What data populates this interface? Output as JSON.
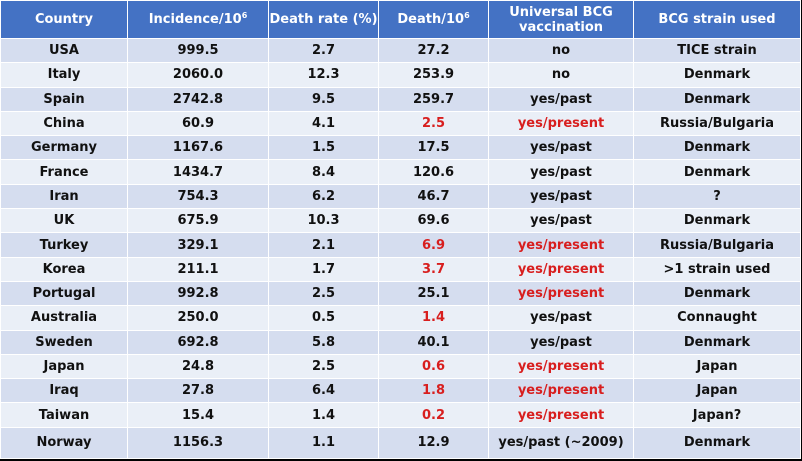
{
  "headers": {
    "country": "Country",
    "incidence": "Incidence/10",
    "incidence_sup": "6",
    "death_rate": "Death rate (%)",
    "death": "Death/10",
    "death_sup": "6",
    "vaccination": "Universal BCG vaccination",
    "strain": "BCG strain used"
  },
  "colors": {
    "header_bg": "#4472C4",
    "row_odd": "#D5DDEF",
    "row_even": "#EAEFF7",
    "highlight": "#D81E1E"
  },
  "rows": [
    {
      "country": "USA",
      "incidence": "999.5",
      "death_rate": "2.7",
      "death": "27.2",
      "vaccination": "no",
      "strain": "TICE strain",
      "highlight": false
    },
    {
      "country": "Italy",
      "incidence": "2060.0",
      "death_rate": "12.3",
      "death": "253.9",
      "vaccination": "no",
      "strain": "Denmark",
      "highlight": false
    },
    {
      "country": "Spain",
      "incidence": "2742.8",
      "death_rate": "9.5",
      "death": "259.7",
      "vaccination": "yes/past",
      "strain": "Denmark",
      "highlight": false
    },
    {
      "country": "China",
      "incidence": "60.9",
      "death_rate": "4.1",
      "death": "2.5",
      "vaccination": "yes/present",
      "strain": "Russia/Bulgaria",
      "highlight": true
    },
    {
      "country": "Germany",
      "incidence": "1167.6",
      "death_rate": "1.5",
      "death": "17.5",
      "vaccination": "yes/past",
      "strain": "Denmark",
      "highlight": false
    },
    {
      "country": "France",
      "incidence": "1434.7",
      "death_rate": "8.4",
      "death": "120.6",
      "vaccination": "yes/past",
      "strain": "Denmark",
      "highlight": false
    },
    {
      "country": "Iran",
      "incidence": "754.3",
      "death_rate": "6.2",
      "death": "46.7",
      "vaccination": "yes/past",
      "strain": "?",
      "highlight": false
    },
    {
      "country": "UK",
      "incidence": "675.9",
      "death_rate": "10.3",
      "death": "69.6",
      "vaccination": "yes/past",
      "strain": "Denmark",
      "highlight": false
    },
    {
      "country": "Turkey",
      "incidence": "329.1",
      "death_rate": "2.1",
      "death": "6.9",
      "vaccination": "yes/present",
      "strain": "Russia/Bulgaria",
      "highlight": true
    },
    {
      "country": "Korea",
      "incidence": "211.1",
      "death_rate": "1.7",
      "death": "3.7",
      "vaccination": "yes/present",
      "strain": ">1 strain used",
      "highlight": true
    },
    {
      "country": "Portugal",
      "incidence": "992.8",
      "death_rate": "2.5",
      "death": "25.1",
      "vaccination": "yes/present",
      "strain": "Denmark",
      "highlight": false,
      "vax_red": true
    },
    {
      "country": "Australia",
      "incidence": "250.0",
      "death_rate": "0.5",
      "death": "1.4",
      "vaccination": "yes/past",
      "strain": "Connaught",
      "highlight": false,
      "death_red": true
    },
    {
      "country": "Sweden",
      "incidence": "692.8",
      "death_rate": "5.8",
      "death": "40.1",
      "vaccination": "yes/past",
      "strain": "Denmark",
      "highlight": false
    },
    {
      "country": "Japan",
      "incidence": "24.8",
      "death_rate": "2.5",
      "death": "0.6",
      "vaccination": "yes/present",
      "strain": "Japan",
      "highlight": true
    },
    {
      "country": "Iraq",
      "incidence": "27.8",
      "death_rate": "6.4",
      "death": "1.8",
      "vaccination": "yes/present",
      "strain": "Japan",
      "highlight": true
    },
    {
      "country": "Taiwan",
      "incidence": "15.4",
      "death_rate": "1.4",
      "death": "0.2",
      "vaccination": "yes/present",
      "strain": "Japan?",
      "highlight": true
    },
    {
      "country": "Norway",
      "incidence": "1156.3",
      "death_rate": "1.1",
      "death": "12.9",
      "vaccination": "yes/past (~2009)",
      "strain": "Denmark",
      "highlight": false
    }
  ]
}
